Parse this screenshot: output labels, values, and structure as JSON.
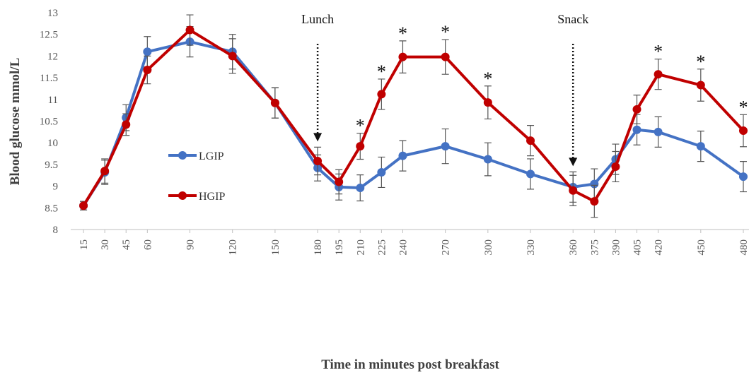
{
  "chart_data": {
    "type": "line",
    "x_label": "Time in minutes post breakfast",
    "y_label": "Blood glucose mmol/L",
    "x": [
      15,
      30,
      45,
      60,
      90,
      120,
      150,
      180,
      195,
      210,
      225,
      240,
      270,
      300,
      330,
      360,
      375,
      390,
      405,
      420,
      450,
      480
    ],
    "xlim": [
      6,
      484
    ],
    "xticks": [
      15,
      30,
      45,
      60,
      90,
      120,
      150,
      180,
      195,
      210,
      225,
      240,
      270,
      300,
      330,
      360,
      375,
      390,
      405,
      420,
      450,
      480
    ],
    "ylim": [
      8,
      13
    ],
    "yticks": [
      8,
      8.5,
      9,
      9.5,
      10,
      10.5,
      11,
      11.5,
      12,
      12.5,
      13
    ],
    "grid": false,
    "legend_position": "left",
    "series": [
      {
        "name": "LGIP",
        "color": "#4472c4",
        "values": [
          8.55,
          9.32,
          10.58,
          12.1,
          12.33,
          12.1,
          10.92,
          9.42,
          8.98,
          8.96,
          9.32,
          9.7,
          9.92,
          9.62,
          9.28,
          8.98,
          9.05,
          9.62,
          10.3,
          10.25,
          9.92,
          9.22
        ],
        "errors": [
          0.1,
          0.28,
          0.3,
          0.35,
          0.35,
          0.4,
          0.35,
          0.3,
          0.3,
          0.3,
          0.35,
          0.35,
          0.4,
          0.38,
          0.35,
          0.35,
          0.35,
          0.35,
          0.35,
          0.35,
          0.35,
          0.35
        ]
      },
      {
        "name": "HGIP",
        "color": "#c00000",
        "values": [
          8.55,
          9.35,
          10.42,
          11.68,
          12.6,
          12.0,
          10.92,
          9.58,
          9.1,
          9.92,
          11.12,
          11.98,
          11.98,
          10.93,
          10.05,
          8.9,
          8.65,
          9.45,
          10.77,
          11.58,
          11.33,
          10.28
        ],
        "errors": [
          0.1,
          0.28,
          0.25,
          0.32,
          0.35,
          0.4,
          0.35,
          0.32,
          0.28,
          0.3,
          0.35,
          0.37,
          0.4,
          0.38,
          0.35,
          0.35,
          0.37,
          0.35,
          0.33,
          0.35,
          0.37,
          0.37
        ]
      }
    ],
    "annotations": [
      {
        "text": "Lunch",
        "x": 180,
        "arrow": true
      },
      {
        "text": "Snack",
        "x": 360,
        "arrow": true
      },
      {
        "text": "*",
        "x": 210
      },
      {
        "text": "*",
        "x": 225
      },
      {
        "text": "*",
        "x": 240
      },
      {
        "text": "*",
        "x": 270
      },
      {
        "text": "*",
        "x": 300
      },
      {
        "text": "*",
        "x": 420
      },
      {
        "text": "*",
        "x": 450
      },
      {
        "text": "*",
        "x": 480
      }
    ]
  }
}
